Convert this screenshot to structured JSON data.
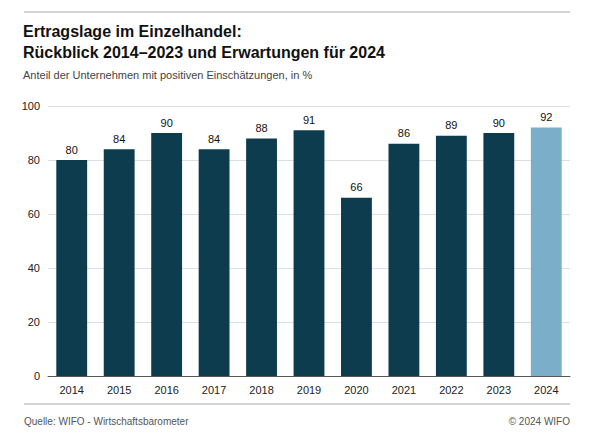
{
  "chart_data": {
    "type": "bar",
    "title": "Ertragslage im Einzelhandel:\nRückblick 2014–2023 und Erwartungen für 2024",
    "subtitle": "Anteil der Unternehmen mit positiven Einschätzungen, in %",
    "categories": [
      "2014",
      "2015",
      "2016",
      "2017",
      "2018",
      "2019",
      "2020",
      "2021",
      "2022",
      "2023",
      "2024"
    ],
    "values": [
      80,
      84,
      90,
      84,
      88,
      91,
      66,
      86,
      89,
      90,
      92
    ],
    "colors": [
      "#0d3c4f",
      "#0d3c4f",
      "#0d3c4f",
      "#0d3c4f",
      "#0d3c4f",
      "#0d3c4f",
      "#0d3c4f",
      "#0d3c4f",
      "#0d3c4f",
      "#0d3c4f",
      "#7baec8"
    ],
    "ylim": [
      0,
      100
    ],
    "yticks": [
      0,
      20,
      40,
      60,
      80,
      100
    ],
    "grid": true,
    "data_labels": true,
    "annotations": [
      "Quelle: WIFO - Wirtschaftsbarometer",
      "© 2024 WIFO"
    ]
  }
}
